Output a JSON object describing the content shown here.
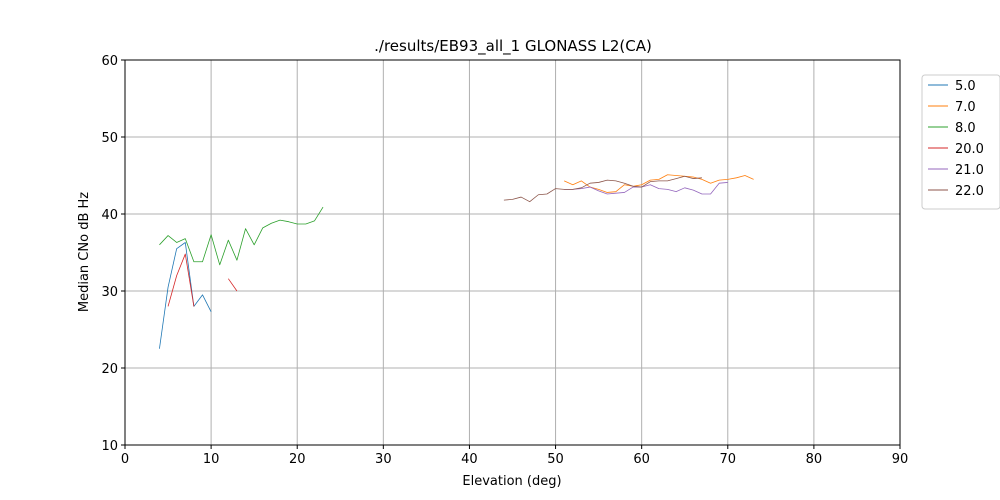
{
  "chart_data": {
    "type": "line",
    "title": "./results/EB93_all_1 GLONASS L2(CA)",
    "xlabel": "Elevation (deg)",
    "ylabel": "Median CNo dB Hz",
    "xlim": [
      0,
      90
    ],
    "ylim": [
      10,
      60
    ],
    "xticks": [
      "0",
      "10",
      "20",
      "30",
      "40",
      "50",
      "60",
      "70",
      "80",
      "90"
    ],
    "yticks": [
      "10",
      "20",
      "30",
      "40",
      "50",
      "60"
    ],
    "grid": true,
    "legend_position": "outside-right",
    "series": [
      {
        "name": "5.0",
        "color": "#1f77b4",
        "x": [
          4,
          5,
          6,
          7,
          8,
          9,
          10
        ],
        "y": [
          22.5,
          30.5,
          35.5,
          36.3,
          28,
          29.5,
          27.3
        ]
      },
      {
        "name": "7.0",
        "color": "#ff7f0e",
        "x": [
          51,
          52,
          53,
          54,
          55,
          56,
          57,
          58,
          59,
          60,
          61,
          62,
          63,
          64,
          65,
          66,
          67,
          68,
          69,
          70,
          71,
          72,
          73
        ],
        "y": [
          44.3,
          43.8,
          44.3,
          43.5,
          43.2,
          42.8,
          42.9,
          43.8,
          43.6,
          43.8,
          44.4,
          44.5,
          45.1,
          45,
          44.9,
          44.8,
          44.5,
          44,
          44.4,
          44.5,
          44.7,
          45,
          44.5
        ]
      },
      {
        "name": "8.0",
        "color": "#2ca02c",
        "x": [
          4,
          5,
          6,
          7,
          8,
          9,
          10,
          11,
          12,
          13,
          14,
          15,
          16,
          17,
          18,
          19,
          20,
          21,
          22,
          23
        ],
        "y": [
          36,
          37.2,
          36.3,
          36.8,
          33.8,
          33.8,
          37.3,
          33.4,
          36.6,
          34,
          38.1,
          36,
          38.2,
          38.8,
          39.2,
          39,
          38.7,
          38.7,
          39.1,
          40.9
        ]
      },
      {
        "name": "20.0",
        "color": "#d62728",
        "x": [
          5,
          6,
          7,
          8,
          null,
          12,
          13
        ],
        "y": [
          28,
          32,
          34.8,
          28,
          null,
          31.6,
          30
        ]
      },
      {
        "name": "21.0",
        "color": "#9467bd",
        "x": [
          51,
          52,
          53,
          54,
          55,
          56,
          57,
          58,
          59,
          60,
          61,
          62,
          63,
          64,
          65,
          66,
          67,
          68,
          69,
          70
        ],
        "y": [
          43.2,
          43.2,
          43.3,
          43.5,
          43,
          42.6,
          42.7,
          42.8,
          43.5,
          43.5,
          43.8,
          43.3,
          43.2,
          42.9,
          43.4,
          43.1,
          42.6,
          42.6,
          44,
          44.1
        ]
      },
      {
        "name": "22.0",
        "color": "#8c564b",
        "x": [
          44,
          45,
          46,
          47,
          48,
          49,
          50,
          51,
          52,
          53,
          54,
          55,
          56,
          57,
          58,
          59,
          60,
          61,
          62,
          63,
          64,
          65,
          66,
          67
        ],
        "y": [
          41.8,
          41.9,
          42.2,
          41.6,
          42.5,
          42.6,
          43.3,
          43.2,
          43.2,
          43.4,
          44,
          44.1,
          44.4,
          44.3,
          44,
          43.6,
          43.5,
          44.2,
          44.3,
          44.3,
          44.6,
          44.9,
          44.6,
          44.7
        ]
      }
    ]
  }
}
